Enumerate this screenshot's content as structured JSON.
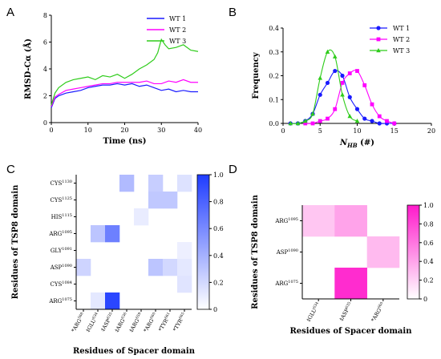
{
  "chart_data": [
    {
      "panel": "A",
      "type": "line",
      "xlabel": "Time (ns)",
      "ylabel": "RMSD-Cα (Å)",
      "xlim": [
        0,
        40
      ],
      "ylim": [
        0,
        8
      ],
      "xticks": [
        0,
        10,
        20,
        30,
        40
      ],
      "yticks": [
        0,
        2,
        4,
        6,
        8
      ],
      "legend_position": "top-right",
      "series": [
        {
          "name": "WT 1",
          "color": "#1a1aff",
          "x": [
            0,
            1,
            2,
            4,
            6,
            8,
            10,
            12,
            14,
            16,
            18,
            20,
            22,
            24,
            26,
            28,
            30,
            32,
            34,
            36,
            38,
            40
          ],
          "y": [
            1.1,
            1.8,
            2.0,
            2.2,
            2.3,
            2.4,
            2.6,
            2.7,
            2.8,
            2.8,
            2.9,
            2.8,
            2.9,
            2.7,
            2.8,
            2.6,
            2.4,
            2.5,
            2.3,
            2.4,
            2.3,
            2.3
          ]
        },
        {
          "name": "WT 2",
          "color": "#ff00ff",
          "x": [
            0,
            1,
            2,
            4,
            6,
            8,
            10,
            12,
            14,
            16,
            18,
            20,
            22,
            24,
            26,
            28,
            30,
            32,
            34,
            36,
            38,
            40
          ],
          "y": [
            1.2,
            1.9,
            2.1,
            2.4,
            2.5,
            2.6,
            2.7,
            2.8,
            2.9,
            2.9,
            3.0,
            3.0,
            3.0,
            3.0,
            3.1,
            2.9,
            2.9,
            3.1,
            3.0,
            3.2,
            3.0,
            3.0
          ]
        },
        {
          "name": "WT 3",
          "color": "#2ecc1a",
          "x": [
            0,
            1,
            2,
            4,
            6,
            8,
            10,
            12,
            14,
            16,
            18,
            20,
            22,
            24,
            26,
            28,
            29,
            30,
            31,
            32,
            34,
            36,
            38,
            40
          ],
          "y": [
            1.3,
            2.2,
            2.6,
            3.0,
            3.2,
            3.3,
            3.4,
            3.2,
            3.5,
            3.4,
            3.6,
            3.3,
            3.6,
            4.0,
            4.3,
            4.7,
            5.2,
            6.2,
            5.8,
            5.5,
            5.6,
            5.8,
            5.4,
            5.3
          ]
        }
      ]
    },
    {
      "panel": "B",
      "type": "line",
      "xlabel": "N",
      "xlabel_sub": "HB",
      "xlabel_suffix": " (#)",
      "ylabel": "Frequency",
      "xlim": [
        0,
        20
      ],
      "ylim": [
        0,
        0.4
      ],
      "xticks": [
        0,
        5,
        10,
        15,
        20
      ],
      "yticks": [
        0.0,
        0.1,
        0.2,
        0.3,
        0.4
      ],
      "legend_position": "top-right",
      "series": [
        {
          "name": "WT 1",
          "color": "#1a1aff",
          "marker": "circle",
          "x": [
            1,
            2,
            3,
            4,
            5,
            6,
            7,
            8,
            9,
            10,
            11,
            12,
            13,
            14,
            15
          ],
          "y": [
            0.0,
            0.0,
            0.01,
            0.04,
            0.12,
            0.17,
            0.22,
            0.2,
            0.11,
            0.06,
            0.02,
            0.01,
            0.0,
            0.0,
            0.0
          ]
        },
        {
          "name": "WT 2",
          "color": "#ff00ff",
          "marker": "square",
          "x": [
            3,
            4,
            5,
            6,
            7,
            8,
            9,
            10,
            11,
            12,
            13,
            14,
            15
          ],
          "y": [
            0.0,
            0.0,
            0.01,
            0.02,
            0.06,
            0.17,
            0.21,
            0.22,
            0.16,
            0.08,
            0.03,
            0.01,
            0.0
          ]
        },
        {
          "name": "WT 3",
          "color": "#2ecc1a",
          "marker": "triangle",
          "x": [
            1,
            2,
            3,
            4,
            5,
            6,
            7,
            8,
            9,
            10
          ],
          "y": [
            0.0,
            0.0,
            0.01,
            0.04,
            0.19,
            0.3,
            0.28,
            0.12,
            0.03,
            0.01
          ]
        }
      ]
    },
    {
      "panel": "C",
      "type": "heatmap",
      "ylabel": "Residues of TSP8 domain",
      "xlabel": "Residues of Spacer domain",
      "rows": [
        {
          "name": "CYS",
          "num": "1130"
        },
        {
          "name": "CYS",
          "num": "1125"
        },
        {
          "name": "HIS",
          "num": "1115"
        },
        {
          "name": "ARG",
          "num": "1095"
        },
        {
          "name": "GLY",
          "num": "1091"
        },
        {
          "name": "ASP",
          "num": "1090"
        },
        {
          "name": "CYS",
          "num": "1084"
        },
        {
          "name": "ARG",
          "num": "1075"
        }
      ],
      "cols": [
        {
          "name": "*ARG",
          "num": "568"
        },
        {
          "name": "‡GLU",
          "num": "634"
        },
        {
          "name": "‡ASP",
          "num": "635"
        },
        {
          "name": "‡ARG",
          "num": "636"
        },
        {
          "name": "‡ARG",
          "num": "659"
        },
        {
          "name": "*ARG",
          "num": "660"
        },
        {
          "name": "*TYR",
          "num": "661"
        },
        {
          "name": "*TYR",
          "num": "665"
        }
      ],
      "values": [
        [
          0,
          0,
          0,
          0.35,
          0,
          0.25,
          0,
          0.15
        ],
        [
          0,
          0,
          0,
          0,
          0,
          0.28,
          0.28,
          0
        ],
        [
          0,
          0,
          0,
          0,
          0.1,
          0,
          0,
          0
        ],
        [
          0,
          0.3,
          0.65,
          0,
          0,
          0,
          0,
          0
        ],
        [
          0,
          0,
          0,
          0,
          0,
          0,
          0,
          0.08
        ],
        [
          0.22,
          0,
          0,
          0,
          0,
          0.3,
          0.2,
          0.12
        ],
        [
          0,
          0,
          0,
          0,
          0,
          0,
          0,
          0.14
        ],
        [
          0,
          0.12,
          0.95,
          0,
          0,
          0,
          0,
          0
        ]
      ],
      "colorbar": {
        "min": 0,
        "max": 1.0,
        "ticks": [
          0,
          0.2,
          0.4,
          0.6,
          0.8,
          1.0
        ],
        "color": "#1f3cff"
      }
    },
    {
      "panel": "D",
      "type": "heatmap",
      "ylabel": "Residues of TSP8 domain",
      "xlabel": "Residues of Spacer domain",
      "rows": [
        {
          "name": "ARG",
          "num": "1095"
        },
        {
          "name": "ASP",
          "num": "1090"
        },
        {
          "name": "ARG",
          "num": "1075"
        }
      ],
      "cols": [
        {
          "name": "‡GLU",
          "num": "634"
        },
        {
          "name": "‡ASP",
          "num": "635"
        },
        {
          "name": "*ARG",
          "num": "660"
        }
      ],
      "values": [
        [
          0.25,
          0.4,
          0
        ],
        [
          0,
          0,
          0.3
        ],
        [
          0,
          0.92,
          0
        ]
      ],
      "colorbar": {
        "min": 0,
        "max": 1.0,
        "ticks": [
          0,
          0.2,
          0.4,
          0.6,
          0.8,
          1.0
        ],
        "color": "#ff1acb"
      }
    }
  ]
}
